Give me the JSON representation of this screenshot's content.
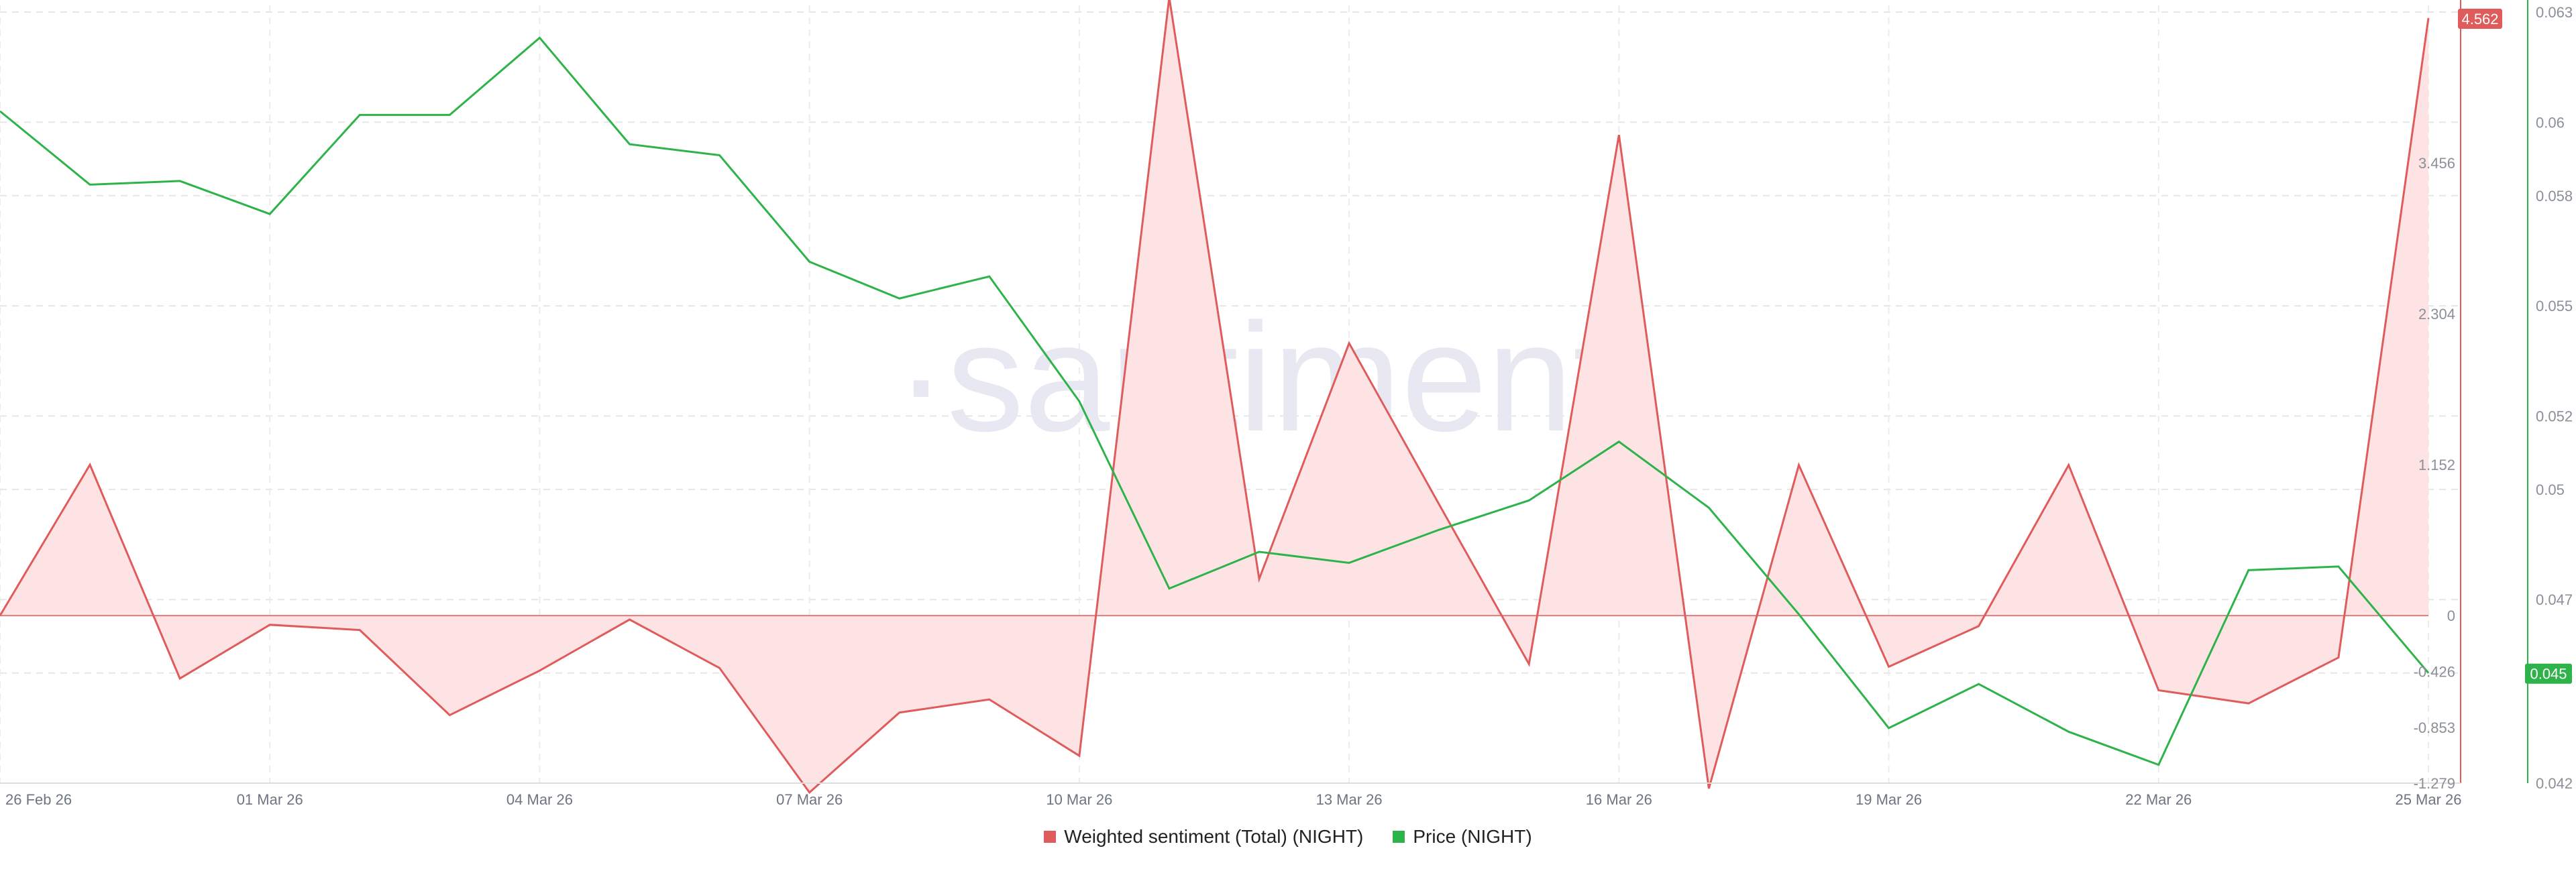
{
  "watermark": "·santiment·",
  "chart_data": {
    "type": "line",
    "x": [
      "26 Feb 26",
      "27 Feb 26",
      "28 Feb 26",
      "01 Mar 26",
      "02 Mar 26",
      "03 Mar 26",
      "04 Mar 26",
      "05 Mar 26",
      "06 Mar 26",
      "07 Mar 26",
      "08 Mar 26",
      "09 Mar 26",
      "10 Mar 26",
      "11 Mar 26",
      "12 Mar 26",
      "13 Mar 26",
      "14 Mar 26",
      "15 Mar 26",
      "16 Mar 26",
      "17 Mar 26",
      "18 Mar 26",
      "19 Mar 26",
      "20 Mar 26",
      "21 Mar 26",
      "22 Mar 26",
      "23 Mar 26",
      "24 Mar 26",
      "25 Mar 26"
    ],
    "x_tick_labels": [
      "26 Feb 26",
      "01 Mar 26",
      "04 Mar 26",
      "07 Mar 26",
      "10 Mar 26",
      "13 Mar 26",
      "16 Mar 26",
      "19 Mar 26",
      "22 Mar 26",
      "25 Mar 26"
    ],
    "series": [
      {
        "name": "Weighted sentiment (Total) (NIGHT)",
        "axis": "left",
        "color": "#e05c5c",
        "fill": "#fde3e4",
        "values": [
          0.0,
          1.152,
          -0.48,
          -0.07,
          -0.11,
          -0.76,
          -0.42,
          -0.03,
          -0.4,
          -1.35,
          -0.74,
          -0.64,
          -1.07,
          4.72,
          0.28,
          2.08,
          0.85,
          -0.37,
          3.67,
          -1.32,
          1.15,
          -0.39,
          -0.08,
          1.15,
          -0.57,
          -0.67,
          -0.32,
          4.562
        ]
      },
      {
        "name": "Price (NIGHT)",
        "axis": "right",
        "color": "#2db34a",
        "values": [
          0.0603,
          0.0583,
          0.0584,
          0.0575,
          0.0602,
          0.0602,
          0.0623,
          0.0594,
          0.0591,
          0.0562,
          0.0552,
          0.0558,
          0.0524,
          0.0473,
          0.0483,
          0.048,
          0.0489,
          0.0497,
          0.0513,
          0.0495,
          0.0466,
          0.0435,
          0.0447,
          0.0434,
          0.0425,
          0.0478,
          0.0479,
          0.045
        ]
      }
    ],
    "y_left": {
      "ticks": [
        "-1.279",
        "-0.853",
        "-0.426",
        "0",
        "1.152",
        "2.304",
        "3.456"
      ],
      "ylim": [
        -1.279,
        4.608
      ]
    },
    "y_right": {
      "ticks": [
        "0.042",
        "0.045",
        "0.047",
        "0.05",
        "0.052",
        "0.055",
        "0.058",
        "0.06",
        "0.063"
      ],
      "ylim": [
        0.042,
        0.063
      ]
    },
    "last_value_badges": {
      "left": "4.562",
      "right": "0.045"
    },
    "grid": true,
    "legend_position": "bottom-center"
  }
}
